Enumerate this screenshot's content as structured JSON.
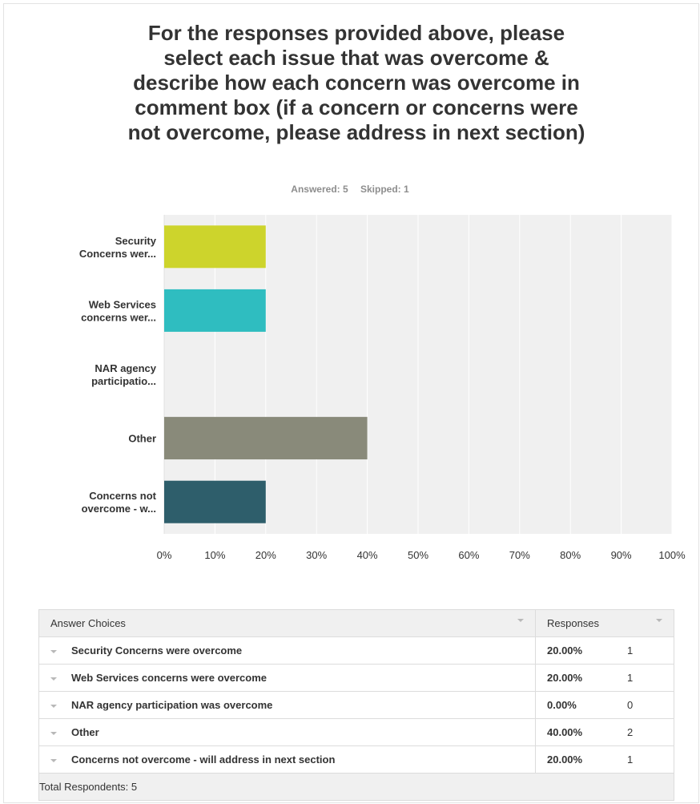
{
  "title": "For the responses provided above, please select each issue that was overcome & describe how each concern was overcome in comment box (if a concern or concerns were not overcome, please address in next section)",
  "answered_label": "Answered: 5",
  "skipped_label": "Skipped: 1",
  "colors": {
    "plot_bg": "#f0f0f0",
    "grid": "#ffffff",
    "bars": [
      "#cdd42c",
      "#2fbdc0",
      "#d9d9d9",
      "#898a7a",
      "#2e5e6b"
    ]
  },
  "chart_data": {
    "type": "bar",
    "orientation": "horizontal",
    "categories": [
      "Security Concerns wer...",
      "Web Services concerns wer...",
      "NAR agency participatio...",
      "Other",
      "Concerns not overcome - w..."
    ],
    "category_label_lines": [
      [
        "Security",
        "Concerns wer..."
      ],
      [
        "Web Services",
        "concerns wer..."
      ],
      [
        "NAR agency",
        "participatio..."
      ],
      [
        "Other"
      ],
      [
        "Concerns not",
        "overcome - w..."
      ]
    ],
    "values": [
      20,
      20,
      0,
      40,
      20
    ],
    "xlim": [
      0,
      100
    ],
    "x_ticks": [
      "0%",
      "10%",
      "20%",
      "30%",
      "40%",
      "50%",
      "60%",
      "70%",
      "80%",
      "90%",
      "100%"
    ],
    "grid": true
  },
  "table": {
    "header_choice": "Answer Choices",
    "header_responses": "Responses",
    "rows": [
      {
        "choice": "Security Concerns were overcome",
        "percent": "20.00%",
        "count": "1"
      },
      {
        "choice": "Web Services concerns were overcome",
        "percent": "20.00%",
        "count": "1"
      },
      {
        "choice": "NAR agency participation was overcome",
        "percent": "0.00%",
        "count": "0"
      },
      {
        "choice": "Other",
        "percent": "40.00%",
        "count": "2"
      },
      {
        "choice": "Concerns not overcome - will address in next section",
        "percent": "20.00%",
        "count": "1"
      }
    ],
    "total_label": "Total Respondents: 5"
  }
}
